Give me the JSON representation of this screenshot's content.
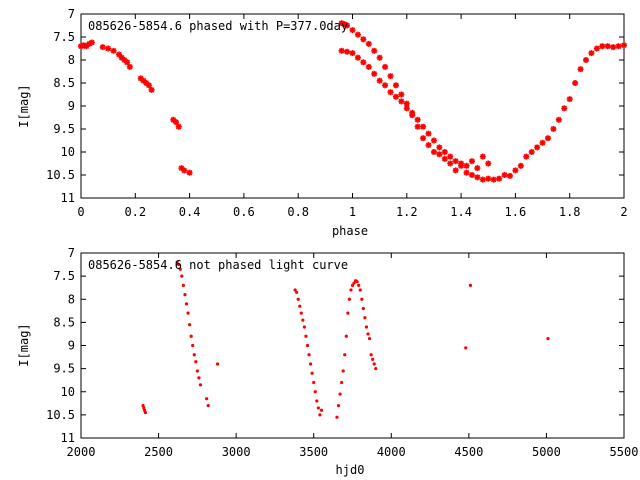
{
  "chart_data": [
    {
      "type": "scatter",
      "title": "085626-5854.6 phased with P=377.0day",
      "xlabel": "phase",
      "ylabel": "I[mag]",
      "xlim": [
        0,
        2
      ],
      "ylim": [
        11,
        7
      ],
      "y_inverted": true,
      "x_ticks": [
        "0",
        "0.2",
        "0.4",
        "0.6",
        "0.8",
        "1",
        "1.2",
        "1.4",
        "1.6",
        "1.8",
        "2"
      ],
      "y_ticks": [
        "7",
        "7.5",
        "8",
        "8.5",
        "9",
        "9.5",
        "10",
        "10.5",
        "11"
      ],
      "grid": false,
      "marker_color": "#ff0000",
      "marker": "star",
      "series": [
        {
          "x": [
            0.0,
            0.01,
            0.02,
            0.03,
            0.04,
            0.08,
            0.1,
            0.12,
            0.14,
            0.15,
            0.16,
            0.17,
            0.18,
            0.22,
            0.23,
            0.24,
            0.25,
            0.26,
            0.34,
            0.35,
            0.36,
            0.37,
            0.38,
            0.4,
            0.96,
            0.97,
            0.98,
            1.0,
            1.02,
            1.04,
            1.06,
            1.08,
            1.1,
            1.12,
            1.14,
            1.16,
            1.18,
            1.2,
            1.22,
            1.24,
            1.26,
            1.28,
            1.3,
            1.32,
            1.34,
            1.36,
            1.38,
            1.4,
            1.42,
            1.44,
            1.46,
            1.48,
            1.5,
            0.96,
            0.98,
            1.0,
            1.02,
            1.04,
            1.06,
            1.08,
            1.1,
            1.12,
            1.14,
            1.16,
            1.18,
            1.2,
            1.22,
            1.24,
            1.26,
            1.28,
            1.3,
            1.32,
            1.34,
            1.36,
            1.38,
            1.4,
            1.42,
            1.44,
            1.46,
            1.48,
            1.5,
            1.52,
            1.54,
            1.56,
            1.58,
            1.6,
            1.62,
            1.64,
            1.66,
            1.68,
            1.7,
            1.72,
            1.74,
            1.76,
            1.78,
            1.8,
            1.82,
            1.84,
            1.86,
            1.88,
            1.9,
            1.92,
            1.94,
            1.96,
            1.98,
            2.0
          ],
          "y": [
            7.7,
            7.68,
            7.7,
            7.65,
            7.62,
            7.72,
            7.75,
            7.8,
            7.88,
            7.95,
            8.0,
            8.05,
            8.15,
            8.4,
            8.45,
            8.5,
            8.55,
            8.65,
            9.3,
            9.35,
            9.45,
            10.35,
            10.4,
            10.45,
            7.2,
            7.22,
            7.25,
            7.35,
            7.45,
            7.55,
            7.65,
            7.8,
            7.95,
            8.15,
            8.35,
            8.55,
            8.75,
            8.95,
            9.2,
            9.45,
            9.7,
            9.85,
            10.0,
            9.9,
            10.0,
            10.1,
            10.2,
            10.25,
            10.3,
            10.2,
            10.35,
            10.1,
            10.25,
            7.8,
            7.82,
            7.85,
            7.95,
            8.05,
            8.15,
            8.3,
            8.45,
            8.55,
            8.7,
            8.8,
            8.9,
            9.05,
            9.15,
            9.3,
            9.45,
            9.6,
            9.75,
            10.05,
            10.15,
            10.25,
            10.4,
            10.3,
            10.45,
            10.5,
            10.55,
            10.6,
            10.58,
            10.6,
            10.58,
            10.5,
            10.52,
            10.4,
            10.3,
            10.1,
            10.0,
            9.9,
            9.8,
            9.7,
            9.5,
            9.3,
            9.05,
            8.85,
            8.5,
            8.2,
            8.0,
            7.85,
            7.75,
            7.7,
            7.7,
            7.72,
            7.7,
            7.68
          ]
        }
      ]
    },
    {
      "type": "scatter",
      "title": "085626-5854.6 not phased light curve",
      "xlabel": "hjd0",
      "ylabel": "I[mag]",
      "xlim": [
        2000,
        5500
      ],
      "ylim": [
        11,
        7
      ],
      "y_inverted": true,
      "x_ticks": [
        "2000",
        "2500",
        "3000",
        "3500",
        "4000",
        "4500",
        "5000",
        "5500"
      ],
      "y_ticks": [
        "7",
        "7.5",
        "8",
        "8.5",
        "9",
        "9.5",
        "10",
        "10.5",
        "11"
      ],
      "grid": false,
      "marker_color": "#ff0000",
      "marker": "dot",
      "series": [
        {
          "x": [
            2400,
            2405,
            2410,
            2415,
            2620,
            2630,
            2640,
            2650,
            2660,
            2670,
            2680,
            2690,
            2700,
            2710,
            2720,
            2730,
            2740,
            2750,
            2760,
            2770,
            2810,
            2820,
            2880,
            3380,
            3390,
            3400,
            3410,
            3420,
            3430,
            3440,
            3450,
            3460,
            3470,
            3480,
            3490,
            3500,
            3510,
            3520,
            3530,
            3540,
            3550,
            3650,
            3660,
            3670,
            3680,
            3690,
            3700,
            3710,
            3720,
            3730,
            3740,
            3750,
            3760,
            3770,
            3780,
            3790,
            3800,
            3810,
            3820,
            3830,
            3840,
            3850,
            3860,
            3870,
            3880,
            3890,
            3900,
            4480,
            4510,
            5010
          ],
          "y": [
            10.3,
            10.35,
            10.4,
            10.45,
            7.2,
            7.25,
            7.35,
            7.5,
            7.7,
            7.9,
            8.1,
            8.3,
            8.55,
            8.8,
            9.0,
            9.2,
            9.35,
            9.55,
            9.7,
            9.85,
            10.15,
            10.3,
            9.4,
            7.8,
            7.85,
            8.0,
            8.15,
            8.3,
            8.45,
            8.6,
            8.8,
            9.0,
            9.2,
            9.4,
            9.6,
            9.8,
            10.0,
            10.2,
            10.35,
            10.5,
            10.4,
            10.55,
            10.3,
            10.05,
            9.8,
            9.55,
            9.2,
            8.8,
            8.3,
            8.0,
            7.8,
            7.7,
            7.65,
            7.6,
            7.62,
            7.7,
            7.8,
            8.0,
            8.2,
            8.4,
            8.6,
            8.75,
            8.85,
            9.2,
            9.3,
            9.4,
            9.5,
            9.05,
            7.7,
            8.85
          ]
        }
      ]
    }
  ]
}
